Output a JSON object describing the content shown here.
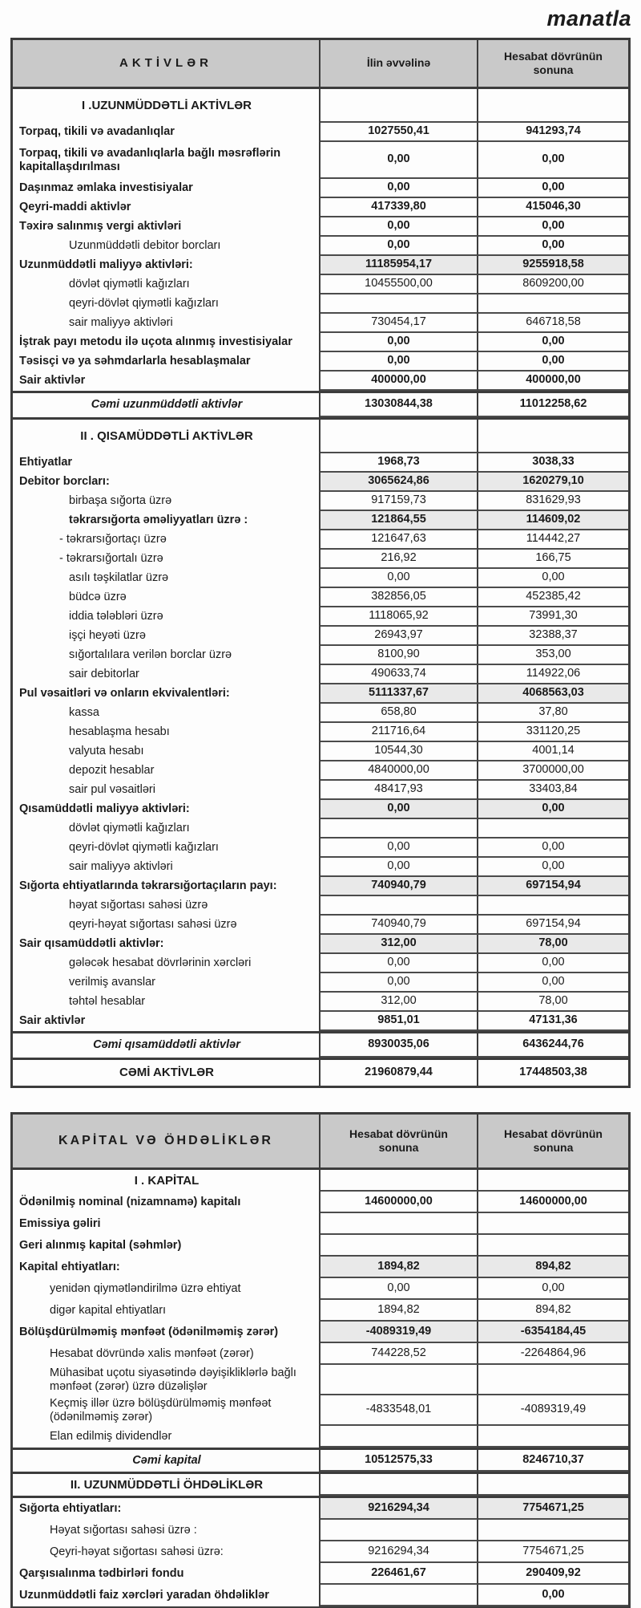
{
  "page": {
    "currency_note": "manatla"
  },
  "tables": [
    {
      "id": "aktivler",
      "header": {
        "label": "AKTİVLƏR",
        "col1": "İlin əvvəlinə",
        "col2": "Hesabat dövrünün sonuna"
      },
      "rows": [
        {
          "t": "section",
          "l": "I .UZUNMÜDDƏTLİ AKTİVLƏR",
          "v1": "",
          "v2": ""
        },
        {
          "t": "item",
          "l": "Torpaq, tikili və avadanlıqlar",
          "v1": "1027550,41",
          "v2": "941293,74",
          "vs": "bc"
        },
        {
          "t": "item",
          "l": "Torpaq, tikili və avadanlıqlarla bağlı məsrəflərin kapitallaşdırılması",
          "v1": "0,00",
          "v2": "0,00",
          "vs": "bc",
          "h": 2
        },
        {
          "t": "item",
          "l": "Daşınmaz əmlaka investisiyalar",
          "v1": "0,00",
          "v2": "0,00",
          "vs": "bc"
        },
        {
          "t": "item",
          "l": "Qeyri-maddi aktivlər",
          "v1": "417339,80",
          "v2": "415046,30",
          "vs": "bc"
        },
        {
          "t": "item",
          "l": "Təxirə salınmış vergi aktivləri",
          "v1": "0,00",
          "v2": "0,00",
          "vs": "bc"
        },
        {
          "t": "sub",
          "l": "Uzunmüddətli debitor borcları",
          "v1": "0,00",
          "v2": "0,00",
          "vs": "bc"
        },
        {
          "t": "item",
          "l": "Uzunmüddətli maliyyə aktivləri:",
          "v1": "11185954,17",
          "v2": "9255918,58",
          "vs": "bcg"
        },
        {
          "t": "sub",
          "l": "dövlət qiymətli kağızları",
          "v1": "10455500,00",
          "v2": "8609200,00",
          "vs": "r"
        },
        {
          "t": "sub",
          "l": "qeyri-dövlət qiymətli kağızları",
          "v1": "",
          "v2": ""
        },
        {
          "t": "sub",
          "l": "sair maliyyə aktivləri",
          "v1": "730454,17",
          "v2": "646718,58",
          "vs": "r"
        },
        {
          "t": "item",
          "l": "İştrak payı metodu ilə uçota alınmış investisiyalar",
          "v1": "0,00",
          "v2": "0,00",
          "vs": "br"
        },
        {
          "t": "item",
          "l": "Təsisçi və ya səhmdarlarla hesablaşmalar",
          "v1": "0,00",
          "v2": "0,00",
          "vs": "br"
        },
        {
          "t": "item",
          "l": "Sair aktivlər",
          "v1": "400000,00",
          "v2": "400000,00",
          "vs": "br"
        },
        {
          "t": "summary",
          "l": "Cəmi uzunmüddətli aktivlər",
          "v1": "13030844,38",
          "v2": "11012258,62",
          "vs": "bc",
          "hr": true
        },
        {
          "t": "section",
          "l": "II . QISAMÜDDƏTLİ AKTİVLƏR",
          "v1": "",
          "v2": "",
          "hr": true
        },
        {
          "t": "item",
          "l": "Ehtiyatlar",
          "v1": "1968,73",
          "v2": "3038,33",
          "vs": "bc"
        },
        {
          "t": "item",
          "l": "Debitor borcları:",
          "v1": "3065624,86",
          "v2": "1620279,10",
          "vs": "bcg"
        },
        {
          "t": "sub",
          "l": "birbaşa sığorta üzrə",
          "v1": "917159,73",
          "v2": "831629,93",
          "vs": "r"
        },
        {
          "t": "sub",
          "l": "təkrarsığorta əməliyyatları üzrə :",
          "v1": "121864,55",
          "v2": "114609,02",
          "vs": "bcg",
          "b": true
        },
        {
          "t": "sub2",
          "l": "- təkrarsığortaçı üzrə",
          "v1": "121647,63",
          "v2": "114442,27",
          "vs": "r"
        },
        {
          "t": "sub2",
          "l": "- təkrarsığortalı üzrə",
          "v1": "216,92",
          "v2": "166,75",
          "vs": "r"
        },
        {
          "t": "sub",
          "l": "asılı təşkilatlar üzrə",
          "v1": "0,00",
          "v2": "0,00",
          "vs": "r"
        },
        {
          "t": "sub",
          "l": "büdcə üzrə",
          "v1": "382856,05",
          "v2": "452385,42",
          "vs": "r"
        },
        {
          "t": "sub",
          "l": "iddia tələbləri üzrə",
          "v1": "1118065,92",
          "v2": "73991,30",
          "vs": "r"
        },
        {
          "t": "sub",
          "l": "işçi heyəti üzrə",
          "v1": "26943,97",
          "v2": "32388,37",
          "vs": "r"
        },
        {
          "t": "sub",
          "l": "sığortalılara verilən borclar üzrə",
          "v1": "8100,90",
          "v2": "353,00",
          "vs": "r"
        },
        {
          "t": "sub",
          "l": "sair debitorlar",
          "v1": "490633,74",
          "v2": "114922,06",
          "vs": "r"
        },
        {
          "t": "item",
          "l": "Pul vəsaitləri və onların ekvivalentləri:",
          "v1": "5111337,67",
          "v2": "4068563,03",
          "vs": "bcg"
        },
        {
          "t": "sub",
          "l": "kassa",
          "v1": "658,80",
          "v2": "37,80",
          "vs": "r"
        },
        {
          "t": "sub",
          "l": "hesablaşma hesabı",
          "v1": "211716,64",
          "v2": "331120,25",
          "vs": "r"
        },
        {
          "t": "sub",
          "l": "valyuta hesabı",
          "v1": "10544,30",
          "v2": "4001,14",
          "vs": "r"
        },
        {
          "t": "sub",
          "l": "depozit hesablar",
          "v1": "4840000,00",
          "v2": "3700000,00",
          "vs": "r"
        },
        {
          "t": "sub",
          "l": "sair pul vəsaitləri",
          "v1": "48417,93",
          "v2": "33403,84",
          "vs": "r"
        },
        {
          "t": "item",
          "l": "Qısamüddətli maliyyə aktivləri:",
          "v1": "0,00",
          "v2": "0,00",
          "vs": "bcg"
        },
        {
          "t": "sub",
          "l": "dövlət qiymətli kağızları",
          "v1": "",
          "v2": ""
        },
        {
          "t": "sub",
          "l": "qeyri-dövlət qiymətli kağızları",
          "v1": "0,00",
          "v2": "0,00",
          "vs": "r"
        },
        {
          "t": "sub",
          "l": "sair maliyyə aktivləri",
          "v1": "0,00",
          "v2": "0,00",
          "vs": "r"
        },
        {
          "t": "item",
          "l": "Sığorta ehtiyatlarında təkrarsığortaçıların payı:",
          "v1": "740940,79",
          "v2": "697154,94",
          "vs": "bcg"
        },
        {
          "t": "sub",
          "l": "həyat sığortası sahəsi üzrə",
          "v1": "",
          "v2": ""
        },
        {
          "t": "sub",
          "l": "qeyri-həyat sığortası sahəsi üzrə",
          "v1": "740940,79",
          "v2": "697154,94",
          "vs": "r"
        },
        {
          "t": "item",
          "l": "Sair qısamüddətli aktivlər:",
          "v1": "312,00",
          "v2": "78,00",
          "vs": "bcg"
        },
        {
          "t": "sub",
          "l": "gələcək hesabat dövrlərinin xərcləri",
          "v1": "0,00",
          "v2": "0,00",
          "vs": "r"
        },
        {
          "t": "sub",
          "l": "verilmiş avanslar",
          "v1": "0,00",
          "v2": "0,00",
          "vs": "r"
        },
        {
          "t": "sub",
          "l": "təhtəl hesablar",
          "v1": "312,00",
          "v2": "78,00",
          "vs": "r"
        },
        {
          "t": "item",
          "l": "Sair aktivlər",
          "v1": "9851,01",
          "v2": "47131,36",
          "vs": "br"
        },
        {
          "t": "summary",
          "l": "Cəmi qısamüddətli aktivlər",
          "v1": "8930035,06",
          "v2": "6436244,76",
          "vs": "bc",
          "hr": true
        },
        {
          "t": "total",
          "l": "CƏMİ AKTİVLƏR",
          "v1": "21960879,44",
          "v2": "17448503,38",
          "vs": "bc",
          "hr": true
        }
      ]
    },
    {
      "id": "kapital",
      "header": {
        "label": "KAPİTAL VƏ ÖHDƏLİKLƏR",
        "col1": "Hesabat dövrünün sonuna",
        "col2": "Hesabat dövrünün sonuna"
      },
      "rows": [
        {
          "t": "section",
          "l": "I . KAPİTAL",
          "v1": "",
          "v2": ""
        },
        {
          "t": "item",
          "l": "Ödənilmiş nominal (nizamnamə) kapitalı",
          "v1": "14600000,00",
          "v2": "14600000,00",
          "vs": "bc"
        },
        {
          "t": "item",
          "l": "Emissiya gəliri",
          "v1": "",
          "v2": ""
        },
        {
          "t": "item",
          "l": "Geri alınmış kapital (səhmlər)",
          "v1": "",
          "v2": ""
        },
        {
          "t": "item",
          "l": "Kapital ehtiyatları:",
          "v1": "1894,82",
          "v2": "894,82",
          "vs": "bcg"
        },
        {
          "t": "sub",
          "l": "yenidən qiymətləndirilmə üzrə ehtiyat",
          "v1": "0,00",
          "v2": "0,00",
          "vs": "r"
        },
        {
          "t": "sub",
          "l": "digər kapital ehtiyatları",
          "v1": "1894,82",
          "v2": "894,82",
          "vs": "r"
        },
        {
          "t": "item",
          "l": "Bölüşdürülməmiş mənfəət (ödənilməmiş zərər)",
          "v1": "-4089319,49",
          "v2": "-6354184,45",
          "vs": "bcg"
        },
        {
          "t": "sub",
          "l": "Hesabat dövründə xalis mənfəət (zərər)",
          "v1": "744228,52",
          "v2": "-2264864,96",
          "vs": "r"
        },
        {
          "t": "sub",
          "l": "Mühasibat uçotu siyasətində dəyişikliklərlə bağlı mənfəət (zərər) üzrə düzəlişlər",
          "v1": "",
          "v2": "",
          "h": 3
        },
        {
          "t": "sub",
          "l": "Keçmiş illər üzrə bölüşdürülməmiş mənfəət (ödənilməmiş zərər)",
          "v1": "-4833548,01",
          "v2": "-4089319,49",
          "vs": "r",
          "h": 3
        },
        {
          "t": "sub",
          "l": "Elan edilmiş dividendlər",
          "v1": "",
          "v2": "",
          "h": 2
        },
        {
          "t": "summary",
          "l": "Cəmi kapital",
          "v1": "10512575,33",
          "v2": "8246710,37",
          "vs": "bc",
          "hr": true
        },
        {
          "t": "section",
          "l": "II. UZUNMÜDDƏTLİ ÖHDƏLİKLƏR",
          "v1": "",
          "v2": "",
          "hr": true
        },
        {
          "t": "item",
          "l": "Sığorta ehtiyatları:",
          "v1": "9216294,34",
          "v2": "7754671,25",
          "vs": "bcg",
          "hr": true
        },
        {
          "t": "sub",
          "l": "Həyat sığortası sahəsi üzrə :",
          "v1": "",
          "v2": "",
          "h": 2
        },
        {
          "t": "sub",
          "l": "Qeyri-həyat sığortası sahəsi üzrə:",
          "v1": "9216294,34",
          "v2": "7754671,25",
          "vs": "r"
        },
        {
          "t": "item",
          "l": "Qarşısıalınma tədbirləri fondu",
          "v1": "226461,67",
          "v2": "290409,92",
          "vs": "bc"
        },
        {
          "t": "item",
          "l": "Uzunmüddətli faiz xərcləri yaradan öhdəliklər",
          "v1": "",
          "v2": "0,00",
          "vs": "bc"
        }
      ]
    }
  ]
}
